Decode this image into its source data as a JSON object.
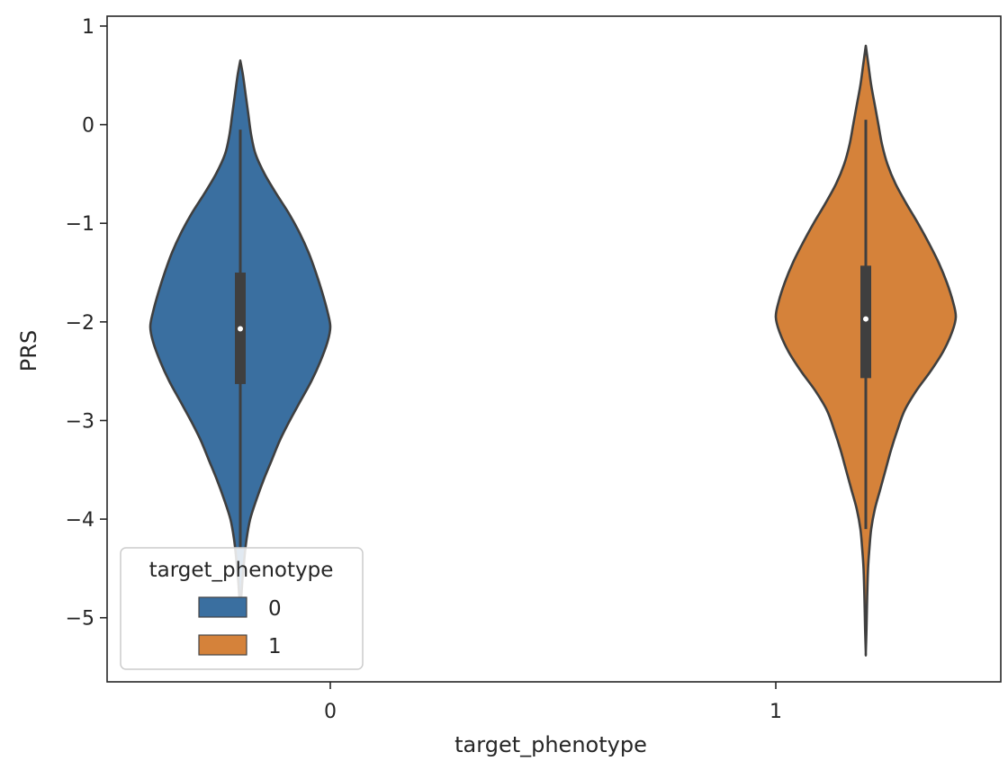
{
  "chart_data": {
    "type": "violin",
    "title": "",
    "xlabel": "target_phenotype",
    "ylabel": "PRS",
    "categories": [
      "0",
      "1"
    ],
    "ylim": [
      -5.65,
      1.1
    ],
    "yticks": [
      1,
      0,
      -1,
      -2,
      -3,
      -4,
      -5
    ],
    "ytick_labels": [
      "1",
      "0",
      "−1",
      "−2",
      "−3",
      "−4",
      "−5"
    ],
    "grid": false,
    "legend": {
      "title": "target_phenotype",
      "position": "lower-left",
      "entries": [
        {
          "label": "0",
          "color": "#3a6fa0"
        },
        {
          "label": "1",
          "color": "#d5823a"
        }
      ]
    },
    "violins": [
      {
        "category": "0",
        "hue": "0",
        "group": 0,
        "color": "#3a6fa0",
        "min": -4.9,
        "max": 0.65,
        "median": -2.07,
        "q1": -2.63,
        "q3": -1.5,
        "whisker_low": -4.3,
        "whisker_high": -0.05,
        "density_profile": [
          [
            0.65,
            0.0
          ],
          [
            0.5,
            0.03
          ],
          [
            0.3,
            0.06
          ],
          [
            0.1,
            0.09
          ],
          [
            -0.1,
            0.12
          ],
          [
            -0.3,
            0.17
          ],
          [
            -0.5,
            0.27
          ],
          [
            -0.7,
            0.4
          ],
          [
            -0.9,
            0.54
          ],
          [
            -1.1,
            0.66
          ],
          [
            -1.3,
            0.76
          ],
          [
            -1.5,
            0.84
          ],
          [
            -1.7,
            0.91
          ],
          [
            -1.9,
            0.97
          ],
          [
            -2.05,
            1.0
          ],
          [
            -2.2,
            0.97
          ],
          [
            -2.4,
            0.89
          ],
          [
            -2.6,
            0.79
          ],
          [
            -2.8,
            0.67
          ],
          [
            -3.0,
            0.55
          ],
          [
            -3.2,
            0.44
          ],
          [
            -3.4,
            0.35
          ],
          [
            -3.6,
            0.26
          ],
          [
            -3.8,
            0.18
          ],
          [
            -4.0,
            0.11
          ],
          [
            -4.2,
            0.07
          ],
          [
            -4.4,
            0.045
          ],
          [
            -4.6,
            0.025
          ],
          [
            -4.8,
            0.01
          ],
          [
            -4.9,
            0.0
          ]
        ]
      },
      {
        "category": "1",
        "hue": "1",
        "group": 1,
        "color": "#d5823a",
        "min": -5.35,
        "max": 0.8,
        "median": -1.97,
        "q1": -2.57,
        "q3": -1.43,
        "whisker_low": -4.1,
        "whisker_high": 0.05,
        "density_profile": [
          [
            0.8,
            0.0
          ],
          [
            0.6,
            0.03
          ],
          [
            0.4,
            0.06
          ],
          [
            0.2,
            0.1
          ],
          [
            0.0,
            0.14
          ],
          [
            -0.2,
            0.18
          ],
          [
            -0.4,
            0.24
          ],
          [
            -0.6,
            0.33
          ],
          [
            -0.8,
            0.45
          ],
          [
            -1.0,
            0.58
          ],
          [
            -1.2,
            0.7
          ],
          [
            -1.4,
            0.81
          ],
          [
            -1.6,
            0.9
          ],
          [
            -1.8,
            0.97
          ],
          [
            -1.95,
            1.0
          ],
          [
            -2.1,
            0.96
          ],
          [
            -2.3,
            0.86
          ],
          [
            -2.5,
            0.72
          ],
          [
            -2.7,
            0.56
          ],
          [
            -2.9,
            0.43
          ],
          [
            -3.1,
            0.35
          ],
          [
            -3.3,
            0.28
          ],
          [
            -3.5,
            0.22
          ],
          [
            -3.7,
            0.16
          ],
          [
            -3.9,
            0.1
          ],
          [
            -4.1,
            0.06
          ],
          [
            -4.3,
            0.04
          ],
          [
            -4.5,
            0.025
          ],
          [
            -4.8,
            0.015
          ],
          [
            -5.1,
            0.008
          ],
          [
            -5.35,
            0.0
          ]
        ]
      }
    ]
  }
}
